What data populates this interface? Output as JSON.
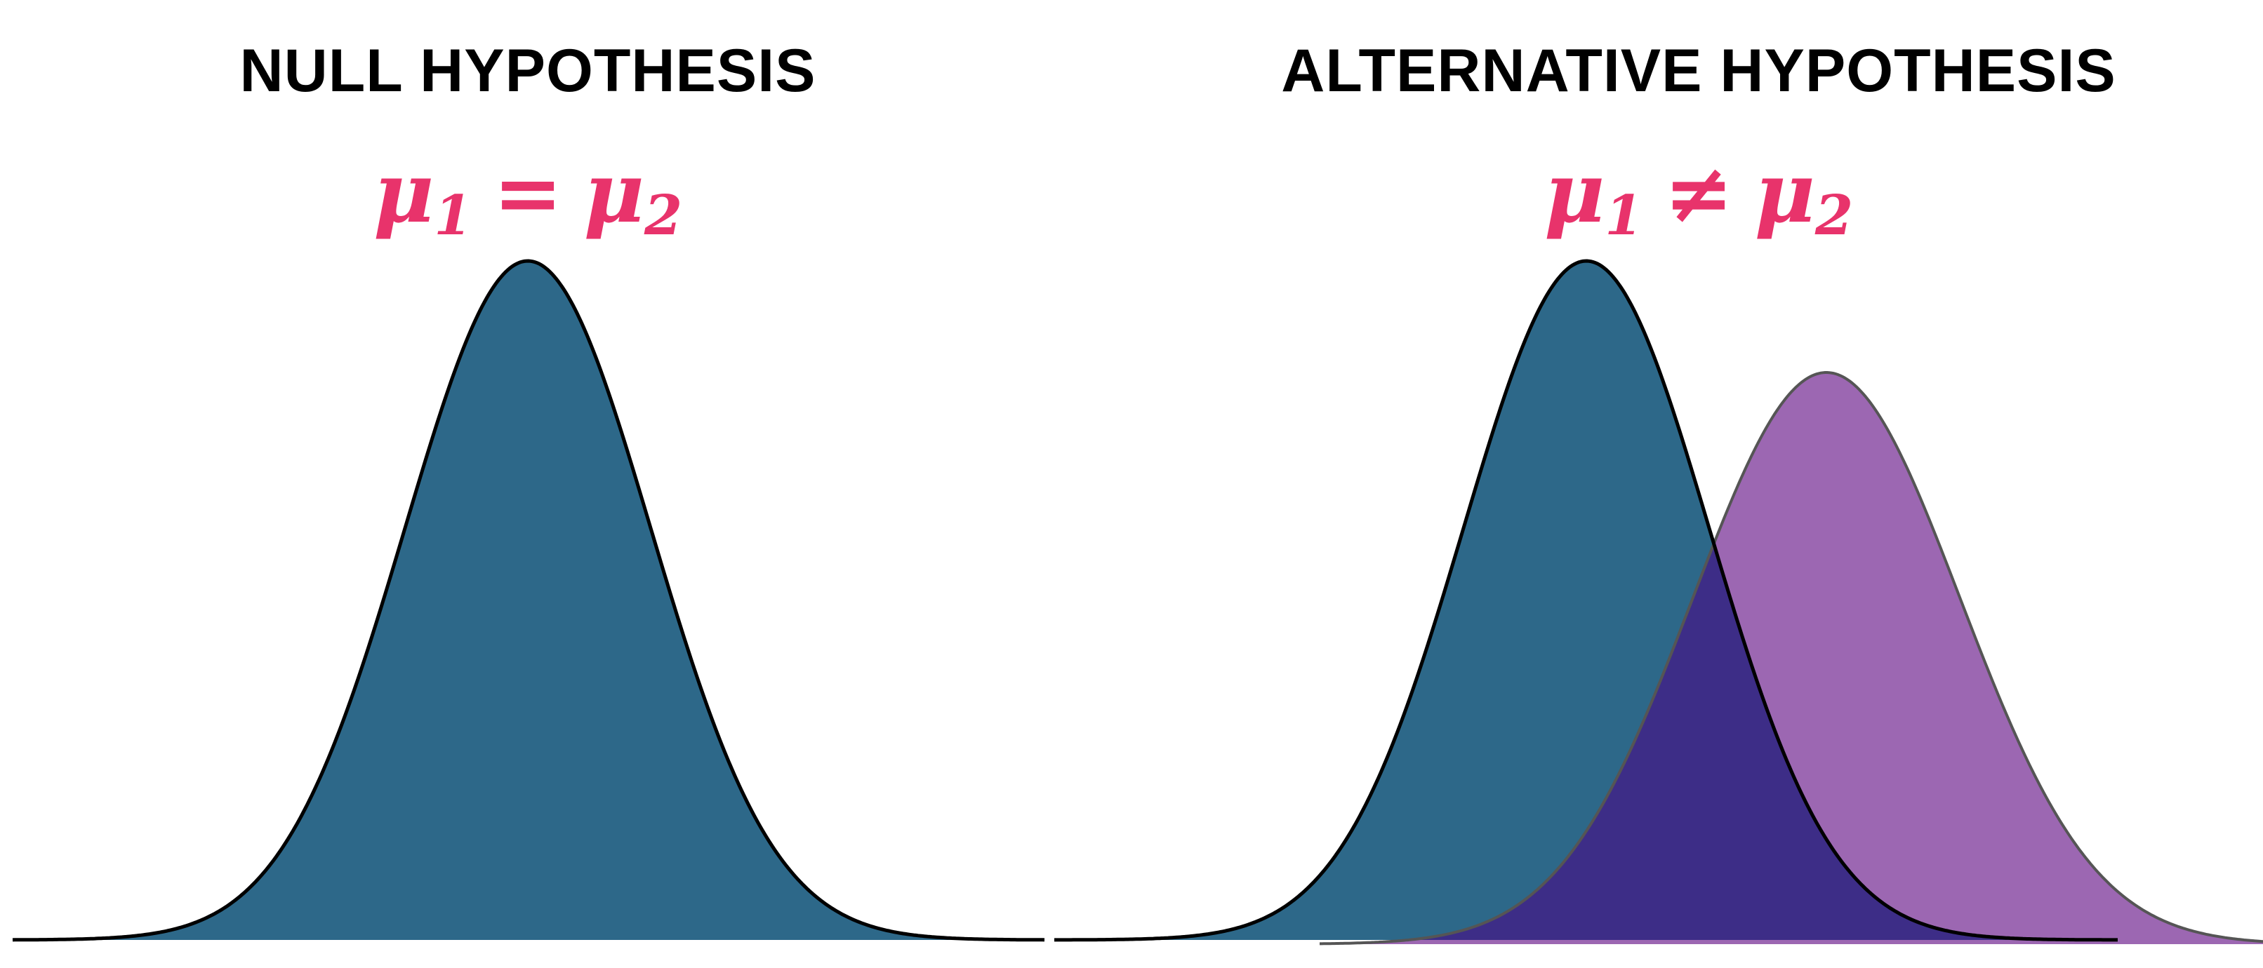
{
  "panels": {
    "null": {
      "title": "NULL HYPOTHESIS",
      "formula": {
        "symbol": "μ",
        "sub1": "1",
        "relation": "=",
        "sub2": "2"
      }
    },
    "alternative": {
      "title": "ALTERNATIVE HYPOTHESIS",
      "formula": {
        "symbol": "μ",
        "sub1": "1",
        "relation": "≠",
        "sub2": "2"
      }
    }
  },
  "colors": {
    "curve_a_fill": "#2d6889",
    "curve_b_fill": "#9c67b2",
    "overlap_fill": "#3d2d87",
    "formula_text": "#e8336b",
    "outline": "#000000",
    "title_text": "#000000"
  }
}
